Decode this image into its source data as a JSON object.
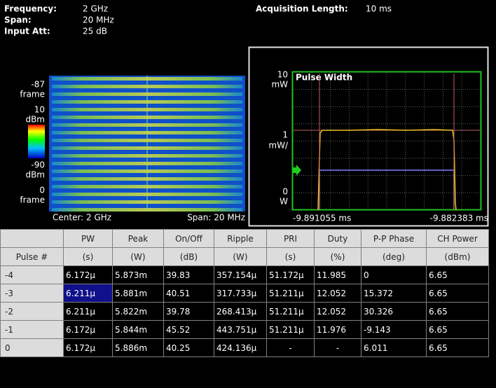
{
  "header": {
    "frequency_label": "Frequency:",
    "frequency": "2 GHz",
    "span_label": "Span:",
    "span": "20 MHz",
    "input_att_label": "Input Att:",
    "input_att": "25 dB",
    "acquisition_label": "Acquisition Length:",
    "acquisition": "10 ms"
  },
  "spectrogram": {
    "top_frame": "-87",
    "top_frame_unit": "frame",
    "max_level": "10",
    "max_level_unit": "dBm",
    "min_level": "-90",
    "min_level_unit": "dBm",
    "bottom_frame": "0",
    "bottom_frame_unit": "frame",
    "center": "Center: 2 GHz",
    "span": "Span: 20 MHz"
  },
  "pulse_plot": {
    "title": "Pulse Width",
    "y_top": "10",
    "y_top_unit": "mW",
    "y_mid": "1",
    "y_mid_unit": "mW/",
    "y_bottom": "0",
    "y_bottom_unit": "W",
    "x_start": "-9.891055 ms",
    "x_end": "-9.882383 ms"
  },
  "table": {
    "header": [
      "",
      "PW",
      "Peak",
      "On/Off",
      "Ripple",
      "PRI",
      "Duty",
      "P-P Phase",
      "CH Power"
    ],
    "units": [
      "Pulse #",
      "(s)",
      "(W)",
      "(dB)",
      "(W)",
      "(s)",
      "(%)",
      "(deg)",
      "(dBm)"
    ],
    "rows": [
      [
        "-4",
        "6.172µ",
        "5.873m",
        "39.83",
        "357.154µ",
        "51.172µ",
        "11.985",
        "0",
        "6.65"
      ],
      [
        "-3",
        "6.211µ",
        "5.881m",
        "40.51",
        "317.733µ",
        "51.211µ",
        "12.052",
        "15.372",
        "6.65"
      ],
      [
        "-2",
        "6.211µ",
        "5.822m",
        "39.78",
        "268.413µ",
        "51.211µ",
        "12.052",
        "30.326",
        "6.65"
      ],
      [
        "-1",
        "6.172µ",
        "5.844m",
        "45.52",
        "443.751µ",
        "51.211µ",
        "11.976",
        "-9.143",
        "6.65"
      ],
      [
        "0",
        "6.172µ",
        "5.886m",
        "40.25",
        "424.136µ",
        "-",
        "-",
        "6.011",
        "6.65"
      ]
    ]
  }
}
